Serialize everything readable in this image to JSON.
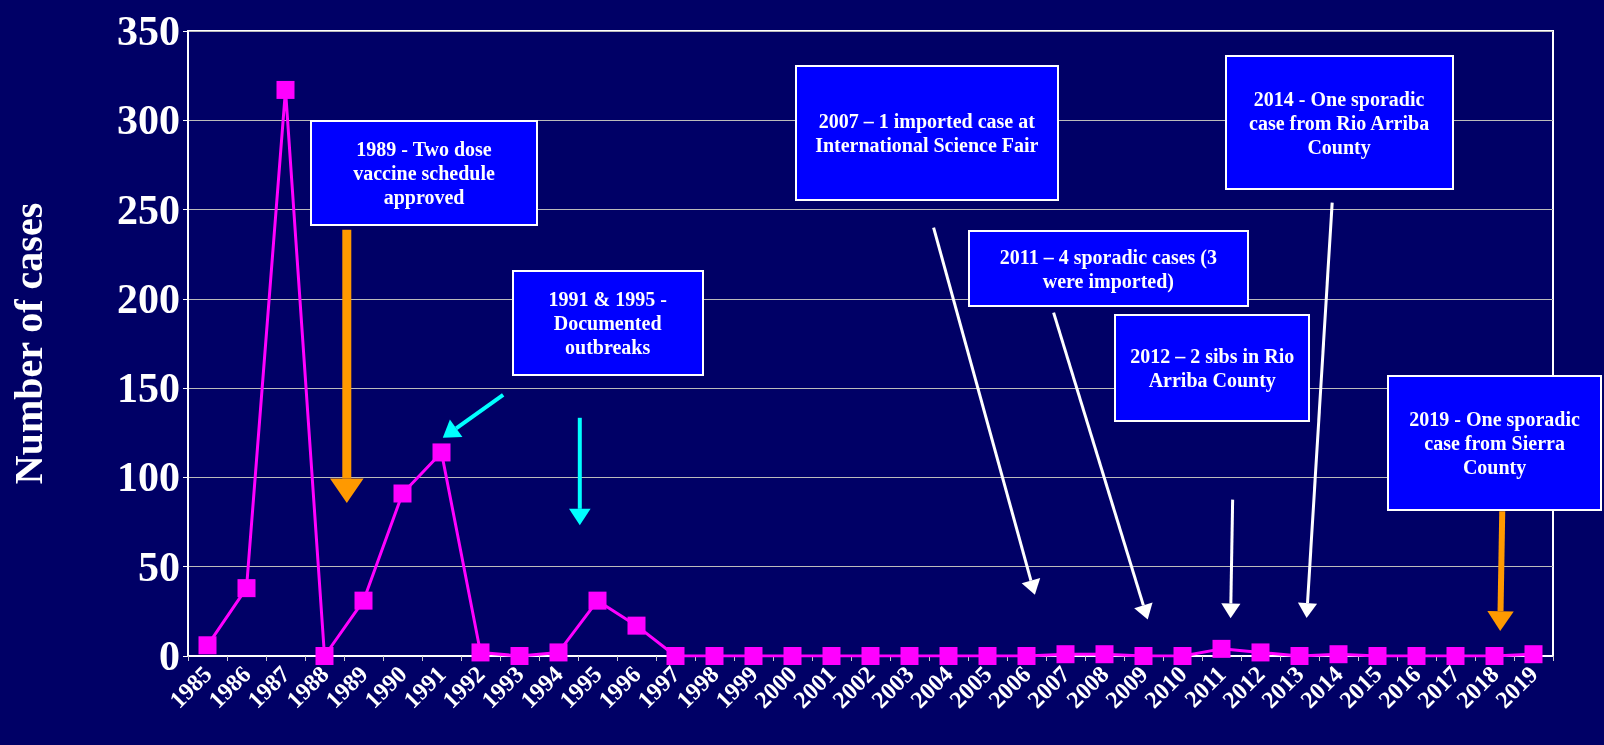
{
  "chart_data": {
    "type": "line",
    "ylabel": "Number of cases",
    "categories": [
      "1985",
      "1986",
      "1987",
      "1988",
      "1989",
      "1990",
      "1991",
      "1992",
      "1993",
      "1994",
      "1995",
      "1996",
      "1997",
      "1998",
      "1999",
      "2000",
      "2001",
      "2002",
      "2003",
      "2004",
      "2005",
      "2006",
      "2007",
      "2008",
      "2009",
      "2010",
      "2011",
      "2012",
      "2013",
      "2014",
      "2015",
      "2016",
      "2017",
      "2018",
      "2019"
    ],
    "values": [
      6,
      38,
      317,
      0,
      31,
      91,
      114,
      2,
      0,
      2,
      31,
      17,
      0,
      0,
      0,
      0,
      0,
      0,
      0,
      0,
      0,
      0,
      1,
      1,
      0,
      0,
      4,
      2,
      0,
      1,
      0,
      0,
      0,
      0,
      1
    ],
    "color": "#ff00ff",
    "ylim": [
      0,
      350
    ],
    "yticks": [
      0,
      50,
      100,
      150,
      200,
      250,
      300,
      350
    ],
    "grid": "y",
    "marker": "square",
    "line_style": "solid",
    "annotations": [
      "1989 - Two dose vaccine schedule approved",
      "1991 & 1995 - Documented outbreaks",
      "2007 – 1 imported case at International Science Fair",
      "2011 – 4 sporadic cases (3 were imported)",
      "2012 – 2 sibs in Rio Arriba County",
      "2014 - One sporadic case from Rio Arriba County",
      "2019 - One sporadic case from Sierra County"
    ]
  }
}
